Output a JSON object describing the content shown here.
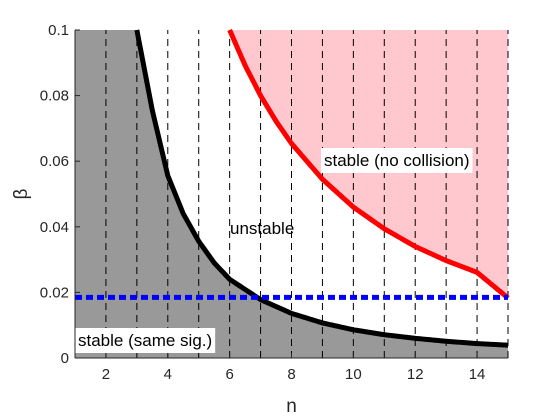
{
  "chart_data": {
    "type": "line",
    "xlabel": "n",
    "ylabel": "β",
    "xlim": [
      1,
      15
    ],
    "ylim": [
      0,
      0.1
    ],
    "x_ticks": [
      {
        "value": 2,
        "label": "2"
      },
      {
        "value": 4,
        "label": "4"
      },
      {
        "value": 6,
        "label": "6"
      },
      {
        "value": 8,
        "label": "8"
      },
      {
        "value": 10,
        "label": "10"
      },
      {
        "value": 12,
        "label": "12"
      },
      {
        "value": 14,
        "label": "14"
      }
    ],
    "y_ticks": [
      {
        "value": 0,
        "label": "0"
      },
      {
        "value": 0.02,
        "label": "0.02"
      },
      {
        "value": 0.04,
        "label": "0.04"
      },
      {
        "value": 0.06,
        "label": "0.06"
      },
      {
        "value": 0.08,
        "label": "0.08"
      },
      {
        "value": 0.1,
        "label": "0.1"
      }
    ],
    "vertical_dashed_lines": [
      1,
      2,
      3,
      4,
      5,
      6,
      7,
      8,
      9,
      10,
      11,
      12,
      13,
      14,
      15
    ],
    "curves": [
      {
        "id": "black-curve",
        "color": "#000000",
        "x": [
          3,
          3.5,
          4,
          4.5,
          5,
          5.5,
          6,
          7,
          8,
          9,
          10,
          11,
          12,
          13,
          14,
          15
        ],
        "y": [
          0.1,
          0.0755,
          0.0556,
          0.044,
          0.0356,
          0.029,
          0.024,
          0.0178,
          0.0136,
          0.0107,
          0.0086,
          0.0071,
          0.006,
          0.0051,
          0.0044,
          0.0039
        ]
      },
      {
        "id": "red-curve",
        "color": "#ff0000",
        "x": [
          6,
          6.5,
          7,
          7.5,
          8,
          9,
          10,
          11,
          12,
          13,
          14,
          15
        ],
        "y": [
          0.1,
          0.0892,
          0.08,
          0.0722,
          0.0654,
          0.0545,
          0.046,
          0.0394,
          0.034,
          0.0297,
          0.0261,
          0.0183
        ]
      },
      {
        "id": "blue-dotted-line",
        "color": "#0000ff",
        "x": [
          1,
          15
        ],
        "y": [
          0.0185,
          0.0185
        ]
      }
    ],
    "region_colors": {
      "gray": "#999999",
      "pink": "#ffc8cf"
    },
    "region_labels": {
      "no_collision": "stable (no collision)",
      "unstable": "unstable",
      "same_sig": "stable (same sig.)"
    }
  }
}
